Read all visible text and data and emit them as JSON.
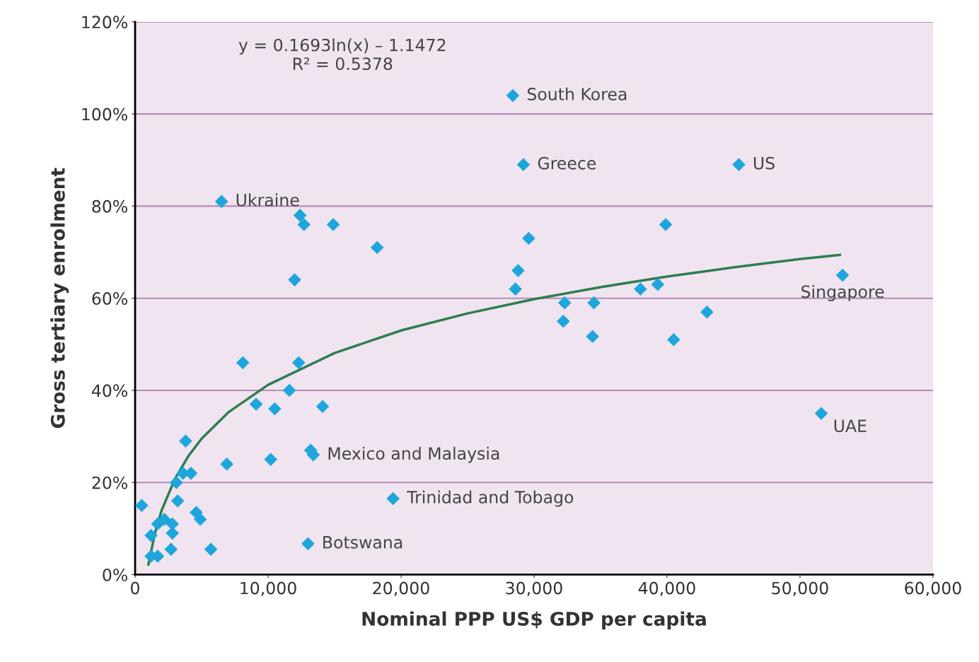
{
  "chart_data": {
    "type": "scatter",
    "xlabel": "Nominal PPP US$ GDP per capita",
    "ylabel": "Gross tertiary enrolment",
    "xlim": [
      0,
      60000
    ],
    "ylim": [
      0,
      120
    ],
    "xticks": [
      0,
      {
        "value": 10000,
        "label": "10,000"
      },
      {
        "value": 20000,
        "label": "20,000"
      },
      {
        "value": 30000,
        "label": "30,000"
      },
      {
        "value": 40000,
        "label": "40,000"
      },
      {
        "value": 50000,
        "label": "50,000"
      },
      {
        "value": 60000,
        "label": "60,000"
      }
    ],
    "yticks": [
      {
        "value": 0,
        "label": "0%"
      },
      {
        "value": 20,
        "label": "20%"
      },
      {
        "value": 40,
        "label": "40%"
      },
      {
        "value": 60,
        "label": "60%"
      },
      {
        "value": 80,
        "label": "80%"
      },
      {
        "value": 100,
        "label": "100%"
      },
      {
        "value": 120,
        "label": "120%"
      }
    ],
    "grid": "y",
    "legend": false,
    "marker": "diamond",
    "series": [
      {
        "color": "#1ea6dc",
        "x": [
          500,
          1200,
          1200,
          1700,
          1700,
          2200,
          2800,
          2800,
          2700,
          3100,
          3800,
          3200,
          3600,
          4200,
          4600,
          4900,
          5700,
          6900,
          6500,
          8100,
          9100,
          10500,
          10200,
          11600,
          12000,
          12300,
          12400,
          12700,
          13200,
          13400,
          14100,
          14900,
          18200,
          19400,
          13000,
          28400,
          29200,
          29600,
          28800,
          28600,
          32300,
          32200,
          34500,
          34400,
          38000,
          39300,
          39900,
          40500,
          43000,
          45400,
          53200,
          51600
        ],
        "values": [
          15,
          8.5,
          4,
          4,
          11,
          12,
          11,
          9,
          5.5,
          20,
          29,
          16,
          22,
          22,
          13.5,
          12,
          5.5,
          24,
          81,
          46,
          37,
          36,
          25,
          40,
          64,
          46,
          78,
          76,
          27,
          26,
          36.5,
          76,
          71,
          16.5,
          6.7,
          104,
          89,
          73,
          66,
          62,
          59,
          55,
          59,
          51.7,
          62,
          63,
          76,
          51,
          57,
          89,
          65,
          35
        ]
      },
      {
        "type": "line",
        "color": "#2e7d4f",
        "marker": "none",
        "line_style": "solid",
        "x": [
          1000,
          1500,
          2000,
          3000,
          4000,
          5000,
          7000,
          10000,
          15000,
          20000,
          25000,
          30000,
          35000,
          40000,
          45000,
          50000,
          53000
        ],
        "values": [
          2.2,
          9.1,
          14.0,
          20.8,
          25.7,
          29.5,
          35.2,
          41.2,
          48.1,
          53.0,
          56.7,
          59.8,
          62.4,
          64.7,
          66.7,
          68.5,
          69.4
        ]
      }
    ],
    "annotations": [
      "y = 0.1693ln(x) – 1.1472\nR² = 0.5378",
      {
        "text": "South Korea",
        "x": 28400,
        "y": 104
      },
      {
        "text": "Greece",
        "x": 29200,
        "y": 89
      },
      {
        "text": "US",
        "x": 45400,
        "y": 89
      },
      {
        "text": "Ukraine",
        "x": 6500,
        "y": 81
      },
      {
        "text": "Singapore",
        "x": 53200,
        "y": 65
      },
      {
        "text": "UAE",
        "x": 51600,
        "y": 35
      },
      {
        "text": "Mexico and Malaysia",
        "x": 13400,
        "y": 26
      },
      {
        "text": "Trinidad and Tobago",
        "x": 19400,
        "y": 16.5
      },
      {
        "text": "Botswana",
        "x": 13000,
        "y": 6.7
      }
    ]
  }
}
